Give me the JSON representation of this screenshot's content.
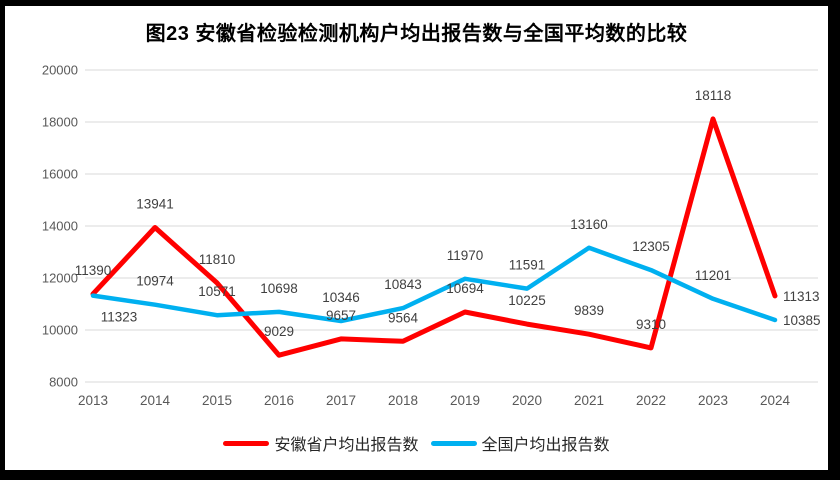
{
  "title": "图23 安徽省检验检测机构户均出报告数与全国平均数的比较",
  "chart_data": {
    "type": "line",
    "title": "图23 安徽省检验检测机构户均出报告数与全国平均数的比较",
    "categories": [
      "2013",
      "2014",
      "2015",
      "2016",
      "2017",
      "2018",
      "2019",
      "2020",
      "2021",
      "2022",
      "2023",
      "2024"
    ],
    "series": [
      {
        "name": "安徽省户均出报告数",
        "color": "#FF0000",
        "values": [
          11390,
          13941,
          11810,
          9029,
          9657,
          9564,
          10694,
          10225,
          9839,
          9310,
          18118,
          11313
        ]
      },
      {
        "name": "全国户均出报告数",
        "color": "#00B0F0",
        "values": [
          11323,
          10974,
          10571,
          10698,
          10346,
          10843,
          11970,
          11591,
          13160,
          12305,
          11201,
          10385
        ]
      }
    ],
    "xlabel": "",
    "ylabel": "",
    "ylim": [
      8000,
      20000
    ],
    "yticks": [
      8000,
      10000,
      12000,
      14000,
      16000,
      18000,
      20000
    ],
    "grid": "horizontal",
    "gridline_color": "#D9D9D9",
    "axis_label_color": "#595959",
    "data_label_color": "#404040",
    "data_labels": true,
    "legend_position": "bottom"
  }
}
